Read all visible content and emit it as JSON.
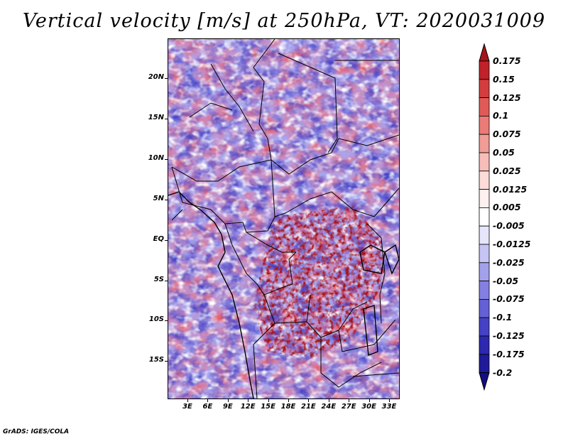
{
  "title": "Vertical velocity [m/s] at 250hPa, VT: 2020031009",
  "credit": "GrADS: IGES/COLA",
  "map": {
    "lat_labels": [
      "20N",
      "15N",
      "10N",
      "5N",
      "EQ",
      "5S",
      "10S",
      "15S"
    ],
    "lon_labels": [
      "3E",
      "6E",
      "9E",
      "12E",
      "15E",
      "18E",
      "21E",
      "24E",
      "27E",
      "30E",
      "33E"
    ],
    "field": "vertical velocity",
    "level": "250hPa"
  },
  "colorbar": {
    "levels": [
      "0.175",
      "0.15",
      "0.125",
      "0.1",
      "0.075",
      "0.05",
      "0.025",
      "0.0125",
      "0.005",
      "-0.005",
      "-0.0125",
      "-0.025",
      "-0.05",
      "-0.075",
      "-0.1",
      "-0.125",
      "-0.175",
      "-0.2"
    ],
    "colors": [
      "#a5141a",
      "#c0222a",
      "#d43d3f",
      "#e05a58",
      "#ea7b76",
      "#f19c96",
      "#f7beb9",
      "#fbdcd8",
      "#fdf0ee",
      "#ffffff",
      "#e6e6fa",
      "#c6c4f3",
      "#a4a1ec",
      "#8480e2",
      "#6460d6",
      "#4642c6",
      "#2c28b0",
      "#1e1a98",
      "#140f80"
    ]
  }
}
